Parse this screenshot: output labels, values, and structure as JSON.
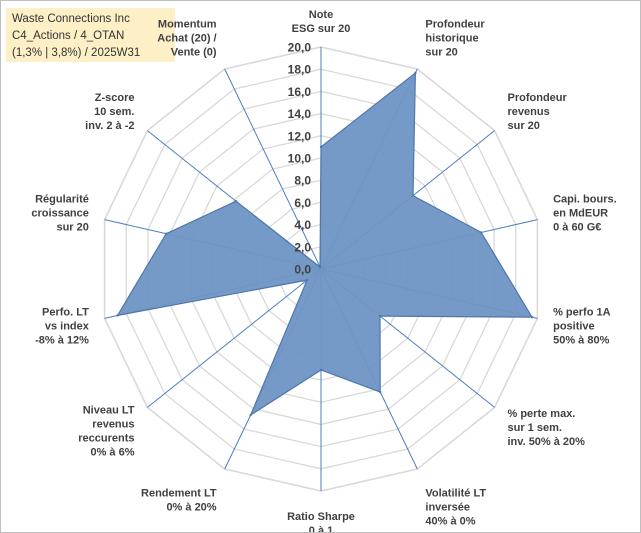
{
  "title_box": {
    "line1": "Waste Connections Inc",
    "line2": "C4_Actions / 4_OTAN",
    "line3": "(1,3% | 3,8%) / 2025W31"
  },
  "colors": {
    "fill": "#6f95c4",
    "stroke": "#4e77ab",
    "spoke": "#4a7fc1",
    "grid": "#d9d9d9",
    "title_bg": "#fdf0c6"
  },
  "chart_data": {
    "type": "radar",
    "r_range": [
      0,
      20
    ],
    "r_ticks": [
      "0,0",
      "2,0",
      "4,0",
      "6,0",
      "8,0",
      "10,0",
      "12,0",
      "14,0",
      "16,0",
      "18,0",
      "20,0"
    ],
    "grid": true,
    "categories": [
      [
        "Note",
        "ESG sur 20"
      ],
      [
        "Profondeur",
        "historique",
        "sur 20"
      ],
      [
        "Profondeur",
        "revenus",
        "sur 20"
      ],
      [
        "Capi. bours.",
        "en MdEUR",
        "0 à 60 G€"
      ],
      [
        "% perfo 1A",
        "positive",
        "50% à 80%"
      ],
      [
        "% perte max.",
        "sur 1 sem.",
        "inv. 50% à 20%"
      ],
      [
        "Volatilité LT",
        "inversée",
        "40% à 0%"
      ],
      [
        "Ratio Sharpe",
        "0 à 1"
      ],
      [
        "Rendement LT",
        "0% à 20%"
      ],
      [
        "Niveau LT",
        "revenus",
        "reccurents",
        "0% à 6%"
      ],
      [
        "Perfo. LT",
        "vs index",
        "-8% à 12%"
      ],
      [
        "Régularité",
        "croissance",
        "sur 20"
      ],
      [
        "Z-score",
        "10 sem.",
        "inv. 2 à -2"
      ],
      [
        "Momentum",
        "Achat (20) /",
        "Vente (0)"
      ]
    ],
    "values": [
      11,
      19.6,
      10.6,
      14.8,
      19.5,
      6.8,
      12.3,
      9.1,
      14.6,
      1.6,
      18.8,
      14.3,
      9.8,
      0.2
    ]
  }
}
